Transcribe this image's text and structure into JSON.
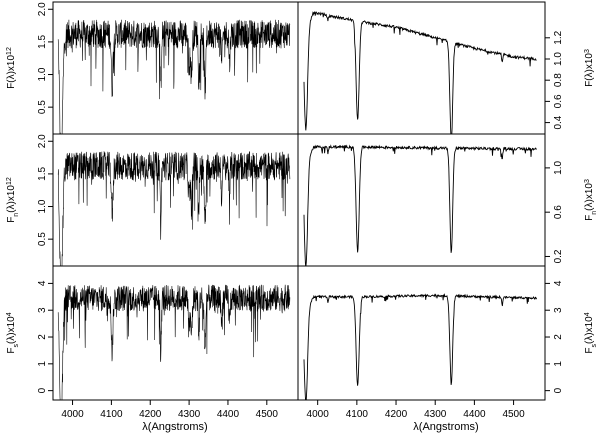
{
  "figure": {
    "xlabel": "λ(Angstroms)",
    "line_color": "#000000",
    "frame_color": "#000000"
  },
  "chart_data": [
    {
      "type": "line",
      "row": 1,
      "col": "left",
      "axis_side": "left",
      "ylabel": "F(λ)x10",
      "ylabel_exponent": "12",
      "xlim": [
        3960,
        4570
      ],
      "ylim": [
        0.15,
        2.05
      ],
      "yticks": [
        {
          "v": 0.5,
          "label": "0.5"
        },
        {
          "v": 1.0,
          "label": "1.0"
        },
        {
          "v": 1.5,
          "label": "1.5"
        },
        {
          "v": 2.0,
          "label": "2.0"
        }
      ],
      "series": {
        "kind": "dense",
        "base": 1.62,
        "noise": 0.22,
        "start": 3963,
        "end": 4560,
        "lines": [
          [
            3969,
            0.95,
            4
          ],
          [
            3972,
            1.25,
            5
          ],
          [
            4102,
            0.8,
            3
          ],
          [
            4227,
            0.9,
            2
          ],
          [
            4300,
            0.45,
            3
          ],
          [
            4306,
            0.6,
            3
          ],
          [
            4325,
            0.7,
            2
          ],
          [
            4341,
            0.85,
            3
          ],
          [
            4384,
            0.5,
            2
          ],
          [
            4404,
            0.45,
            2
          ]
        ]
      },
      "xticks": []
    },
    {
      "type": "line",
      "row": 1,
      "col": "right",
      "axis_side": "right",
      "ylabel": "F(λ)x10",
      "ylabel_exponent": "3",
      "xlim": [
        3960,
        4570
      ],
      "ylim": [
        0.33,
        1.5
      ],
      "yticks": [
        {
          "v": 0.4,
          "label": "0.4"
        },
        {
          "v": 0.6,
          "label": "0.6"
        },
        {
          "v": 0.8,
          "label": "0.8"
        },
        {
          "v": 1.0,
          "label": "1.0"
        },
        {
          "v": 1.2,
          "label": "1.2"
        }
      ],
      "series": {
        "kind": "smooth",
        "start": 3965,
        "end": 4560,
        "continuum": [
          [
            3965,
            1.25
          ],
          [
            3990,
            1.44
          ],
          [
            4040,
            1.4
          ],
          [
            4100,
            1.36
          ],
          [
            4150,
            1.33
          ],
          [
            4200,
            1.3
          ],
          [
            4300,
            1.2
          ],
          [
            4400,
            1.1
          ],
          [
            4500,
            1.02
          ],
          [
            4560,
            1.0
          ]
        ],
        "lines": [
          [
            3970,
            0.95,
            6
          ],
          [
            4102,
            0.93,
            5.5
          ],
          [
            4341,
            0.93,
            5
          ],
          [
            4026,
            0.05,
            2
          ],
          [
            4471,
            0.08,
            2
          ]
        ],
        "jitter": 0.012
      },
      "xticks": []
    },
    {
      "type": "line",
      "row": 2,
      "col": "left",
      "axis_side": "left",
      "ylabel": "F",
      "ylabel_subscript": "n",
      "ylabel_rest": "(λ)x10",
      "ylabel_exponent": "12",
      "xlim": [
        3960,
        4570
      ],
      "ylim": [
        0.15,
        2.05
      ],
      "yticks": [
        {
          "v": 0.5,
          "label": "0.5"
        },
        {
          "v": 1.0,
          "label": "1.0"
        },
        {
          "v": 1.5,
          "label": "1.5"
        },
        {
          "v": 2.0,
          "label": "2.0"
        }
      ],
      "series": {
        "kind": "dense",
        "base": 1.62,
        "noise": 0.22,
        "start": 3963,
        "end": 4560,
        "lines": [
          [
            3969,
            0.95,
            4
          ],
          [
            3972,
            1.25,
            5
          ],
          [
            4102,
            0.75,
            3
          ],
          [
            4227,
            0.9,
            2
          ],
          [
            4300,
            0.45,
            3
          ],
          [
            4306,
            0.6,
            3
          ],
          [
            4325,
            0.7,
            2
          ],
          [
            4341,
            0.85,
            3
          ],
          [
            4384,
            0.5,
            2
          ],
          [
            4404,
            0.45,
            2
          ]
        ]
      },
      "xticks": []
    },
    {
      "type": "line",
      "row": 2,
      "col": "right",
      "axis_side": "right",
      "ylabel": "F",
      "ylabel_subscript": "n",
      "ylabel_rest": "(λ)x10",
      "ylabel_exponent": "3",
      "xlim": [
        3960,
        4570
      ],
      "ylim": [
        0.15,
        1.27
      ],
      "yticks": [
        {
          "v": 0.2,
          "label": "0.2"
        },
        {
          "v": 0.6,
          "label": "0.6"
        },
        {
          "v": 1.0,
          "label": "1.0"
        }
      ],
      "series": {
        "kind": "smooth",
        "start": 3965,
        "end": 4560,
        "continuum": [
          [
            3965,
            1.05
          ],
          [
            3990,
            1.19
          ],
          [
            4100,
            1.19
          ],
          [
            4300,
            1.18
          ],
          [
            4560,
            1.17
          ]
        ],
        "lines": [
          [
            3970,
            0.97,
            6
          ],
          [
            4102,
            0.95,
            5.5
          ],
          [
            4341,
            0.95,
            5
          ],
          [
            4026,
            0.06,
            2
          ],
          [
            4471,
            0.1,
            2
          ]
        ],
        "jitter": 0.012
      },
      "xticks": []
    },
    {
      "type": "line",
      "row": 3,
      "col": "left",
      "axis_side": "left",
      "ylabel": "F",
      "ylabel_subscript": "s",
      "ylabel_rest": "(λ)x10",
      "ylabel_exponent": "4",
      "xlim": [
        3960,
        4570
      ],
      "ylim": [
        -0.2,
        4.5
      ],
      "yticks": [
        {
          "v": 0,
          "label": "0"
        },
        {
          "v": 1,
          "label": "1"
        },
        {
          "v": 2,
          "label": "2"
        },
        {
          "v": 3,
          "label": "3"
        },
        {
          "v": 4,
          "label": "4"
        }
      ],
      "series": {
        "kind": "dense",
        "base": 3.45,
        "noise": 0.5,
        "start": 3963,
        "end": 4560,
        "lines": [
          [
            3969,
            2.3,
            4
          ],
          [
            3972,
            3.0,
            5
          ],
          [
            4102,
            2.0,
            3
          ],
          [
            4227,
            2.0,
            2
          ],
          [
            4300,
            1.0,
            3
          ],
          [
            4306,
            1.3,
            3
          ],
          [
            4325,
            1.5,
            2
          ],
          [
            4341,
            1.9,
            3
          ],
          [
            4384,
            1.1,
            2
          ],
          [
            4404,
            1.0,
            2
          ]
        ]
      },
      "xticks": [
        4000,
        4100,
        4200,
        4300,
        4400,
        4500
      ]
    },
    {
      "type": "line",
      "row": 3,
      "col": "right",
      "axis_side": "right",
      "ylabel": "F",
      "ylabel_subscript": "s",
      "ylabel_rest": "(λ)x10",
      "ylabel_exponent": "4",
      "xlim": [
        3960,
        4570
      ],
      "ylim": [
        -0.2,
        4.5
      ],
      "yticks": [
        {
          "v": 0,
          "label": "0"
        },
        {
          "v": 1,
          "label": "1"
        },
        {
          "v": 2,
          "label": "2"
        },
        {
          "v": 3,
          "label": "3"
        },
        {
          "v": 4,
          "label": "4"
        }
      ],
      "series": {
        "kind": "smooth",
        "start": 3965,
        "end": 4560,
        "continuum": [
          [
            3965,
            2.9
          ],
          [
            3990,
            3.5
          ],
          [
            4100,
            3.5
          ],
          [
            4300,
            3.55
          ],
          [
            4560,
            3.45
          ]
        ],
        "lines": [
          [
            3970,
            3.45,
            6
          ],
          [
            4102,
            3.3,
            5.5
          ],
          [
            4341,
            3.3,
            5
          ],
          [
            4026,
            0.2,
            2
          ],
          [
            4471,
            0.3,
            2
          ]
        ],
        "jitter": 0.04
      },
      "xticks": [
        4000,
        4100,
        4200,
        4300,
        4400,
        4500
      ]
    }
  ]
}
